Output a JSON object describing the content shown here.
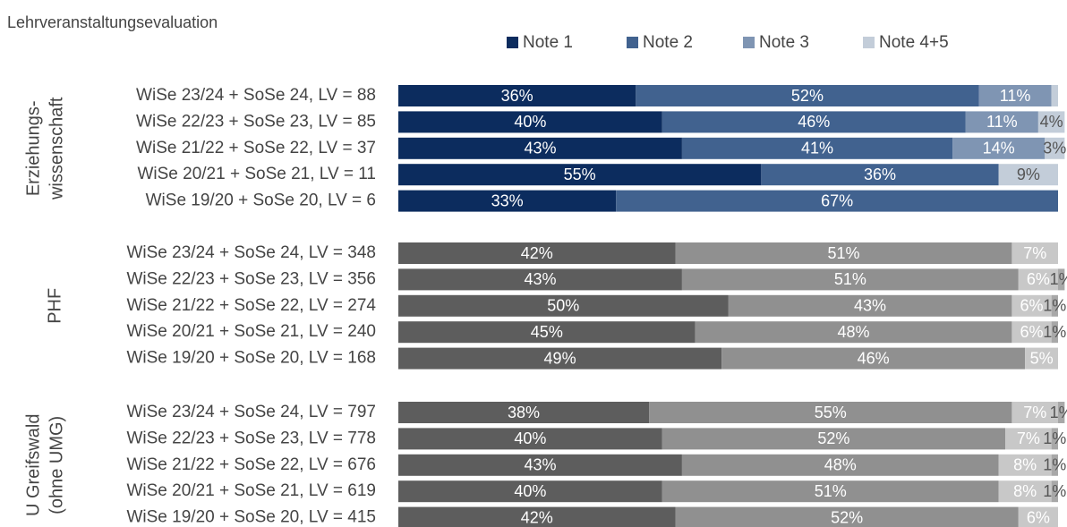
{
  "chart_data": {
    "type": "stacked-bar",
    "title": "Lehrveranstaltungsevaluation",
    "legend": [
      {
        "name": "Note 1",
        "color": "#0c2c5e"
      },
      {
        "name": "Note 2",
        "color": "#41628f"
      },
      {
        "name": "Note 3",
        "color": "#7f95b3"
      },
      {
        "name": "Note 4+5",
        "color": "#c3cdd9"
      }
    ],
    "xlim": [
      0,
      100
    ],
    "groups": [
      {
        "name": [
          "Erziehungs-",
          "wissenschaft"
        ],
        "colors": [
          "#0c2c5e",
          "#41628f",
          "#7f95b3",
          "#c3cdd9"
        ],
        "categories": [
          "WiSe 23/24 + SoSe 24, LV = 88",
          "WiSe 22/23 + SoSe 23, LV = 85",
          "WiSe 21/22 + SoSe 22, LV = 37",
          "WiSe 20/21 + SoSe 21, LV = 11",
          "WiSe 19/20 + SoSe 20, LV = 6"
        ],
        "values": [
          [
            36,
            52,
            11,
            1
          ],
          [
            40,
            46,
            11,
            4
          ],
          [
            43,
            41,
            14,
            3
          ],
          [
            55,
            36,
            0,
            9
          ],
          [
            33,
            67,
            0,
            0
          ]
        ],
        "value_labels": [
          [
            "36%",
            "52%",
            "11%",
            null
          ],
          [
            "40%",
            "46%",
            "11%",
            "4%"
          ],
          [
            "43%",
            "41%",
            "14%",
            "3%"
          ],
          [
            "55%",
            "36%",
            null,
            "9%"
          ],
          [
            "33%",
            "67%",
            null,
            null
          ]
        ]
      },
      {
        "name": [
          "PHF"
        ],
        "colors": [
          "#5d5d5d",
          "#909090",
          "#c8c8c8",
          "#a8a8a8"
        ],
        "categories": [
          "WiSe 23/24 + SoSe 24, LV = 348",
          "WiSe 22/23 + SoSe 23, LV = 356",
          "WiSe 21/22 + SoSe 22, LV = 274",
          "WiSe 20/21 + SoSe 21, LV = 240",
          "WiSe 19/20 + SoSe 20, LV = 168"
        ],
        "values": [
          [
            42,
            51,
            7,
            0
          ],
          [
            43,
            51,
            6,
            1
          ],
          [
            50,
            43,
            6,
            1
          ],
          [
            45,
            48,
            6,
            1
          ],
          [
            49,
            46,
            5,
            0
          ]
        ],
        "value_labels": [
          [
            "42%",
            "51%",
            "7%",
            null
          ],
          [
            "43%",
            "51%",
            "6%",
            "1%"
          ],
          [
            "50%",
            "43%",
            "6%",
            "1%"
          ],
          [
            "45%",
            "48%",
            "6%",
            "1%"
          ],
          [
            "49%",
            "46%",
            "5%",
            null
          ]
        ]
      },
      {
        "name": [
          "U Greifswald",
          "(ohne UMG)"
        ],
        "colors": [
          "#5d5d5d",
          "#909090",
          "#c8c8c8",
          "#a8a8a8"
        ],
        "categories": [
          "WiSe 23/24 + SoSe 24, LV = 797",
          "WiSe 22/23 + SoSe 23, LV = 778",
          "WiSe 21/22 + SoSe 22, LV = 676",
          "WiSe 20/21 + SoSe 21, LV = 619",
          "WiSe 19/20 + SoSe 20, LV = 415"
        ],
        "values": [
          [
            38,
            55,
            7,
            1
          ],
          [
            40,
            52,
            7,
            1
          ],
          [
            43,
            48,
            8,
            1
          ],
          [
            40,
            51,
            8,
            1
          ],
          [
            42,
            52,
            6,
            0
          ]
        ],
        "value_labels": [
          [
            "38%",
            "55%",
            "7%",
            "1%"
          ],
          [
            "40%",
            "52%",
            "7%",
            "1%"
          ],
          [
            "43%",
            "48%",
            "8%",
            "1%"
          ],
          [
            "40%",
            "51%",
            "8%",
            "1%"
          ],
          [
            "42%",
            "52%",
            "6%",
            null
          ]
        ]
      }
    ]
  }
}
